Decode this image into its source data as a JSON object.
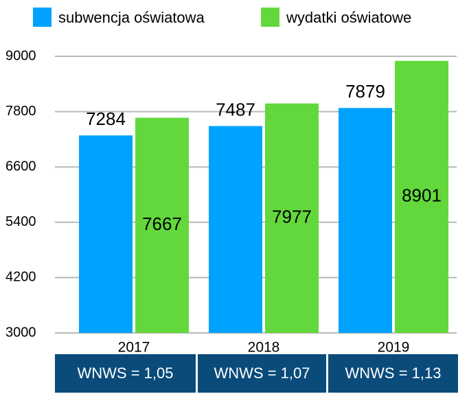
{
  "chart_data": {
    "type": "bar",
    "categories": [
      "2017",
      "2018",
      "2019"
    ],
    "series": [
      {
        "name": "subwencja oświatowa",
        "color": "#00a2ff",
        "values": [
          7284,
          7487,
          7879
        ]
      },
      {
        "name": "wydatki oświatowe",
        "color": "#63d83c",
        "values": [
          7667,
          7977,
          8901
        ]
      }
    ],
    "ylim": [
      3000,
      9000
    ],
    "yticks": [
      3000,
      4200,
      5400,
      6600,
      7800,
      9000
    ],
    "grid": true,
    "legend": "top",
    "footer_labels": [
      "WNWS = 1,05",
      "WNWS = 1,07",
      "WNWS = 1,13"
    ]
  }
}
